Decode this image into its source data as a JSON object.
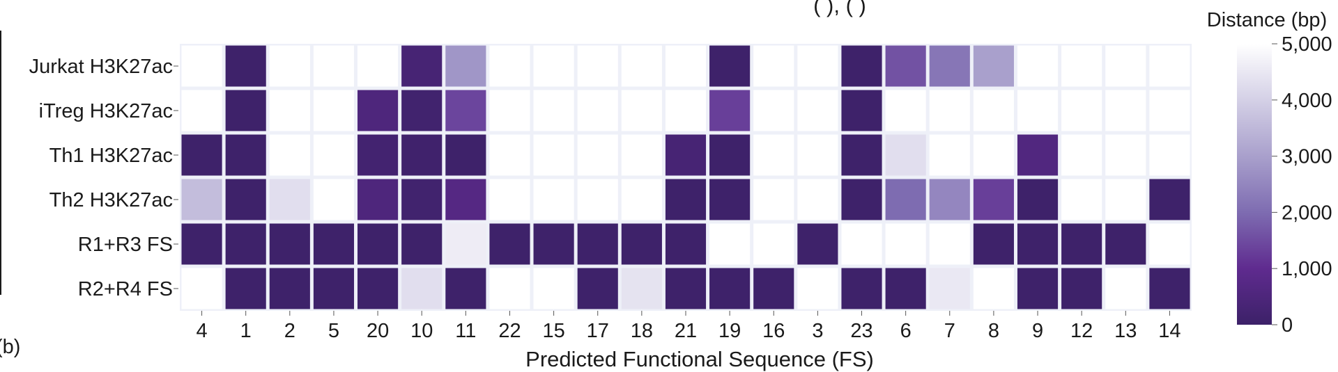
{
  "chart_data": {
    "type": "heatmap",
    "xlabel": "Predicted Functional Sequence (FS)",
    "x_categories": [
      "4",
      "1",
      "2",
      "5",
      "20",
      "10",
      "11",
      "22",
      "15",
      "17",
      "18",
      "21",
      "19",
      "16",
      "3",
      "23",
      "6",
      "7",
      "8",
      "9",
      "12",
      "13",
      "14"
    ],
    "y_categories": [
      "Jurkat H3K27ac",
      "iTreg H3K27ac",
      "Th1 H3K27ac",
      "Th2 H3K27ac",
      "R1+R3 FS",
      "R2+R4 FS"
    ],
    "values": [
      [
        5000,
        50,
        5000,
        5000,
        5000,
        300,
        2800,
        5000,
        5000,
        5000,
        5000,
        5000,
        50,
        5000,
        5000,
        50,
        1600,
        2200,
        3000,
        5000,
        5000,
        5000,
        5000
      ],
      [
        5000,
        50,
        5000,
        5000,
        500,
        150,
        1400,
        5000,
        5000,
        5000,
        5000,
        5000,
        1300,
        5000,
        5000,
        50,
        5000,
        5000,
        5000,
        5000,
        5000,
        5000,
        5000
      ],
      [
        50,
        50,
        5000,
        5000,
        200,
        100,
        50,
        5000,
        5000,
        5000,
        5000,
        300,
        50,
        5000,
        5000,
        50,
        4300,
        5000,
        5000,
        600,
        5000,
        5000,
        5000
      ],
      [
        3600,
        50,
        4300,
        5000,
        500,
        150,
        700,
        5000,
        5000,
        5000,
        5000,
        50,
        50,
        5000,
        5000,
        50,
        2000,
        2500,
        1300,
        50,
        5000,
        5000,
        50
      ],
      [
        50,
        50,
        50,
        50,
        50,
        50,
        4600,
        50,
        50,
        50,
        50,
        50,
        5000,
        5000,
        50,
        5000,
        5000,
        5000,
        50,
        50,
        50,
        50,
        5000
      ],
      [
        5000,
        50,
        50,
        50,
        50,
        4300,
        50,
        5000,
        5000,
        50,
        4400,
        50,
        50,
        50,
        5000,
        50,
        50,
        4500,
        5000,
        50,
        50,
        5000,
        50
      ]
    ],
    "colorbar": {
      "title": "Distance (bp)",
      "range": [
        0,
        5000
      ],
      "ticks": [
        0,
        1000,
        2000,
        3000,
        4000,
        5000
      ],
      "tick_labels": [
        "0",
        "1,000",
        "2,000",
        "3,000",
        "4,000",
        "5,000"
      ],
      "colormap": [
        "#3c2168",
        "#5f2b8f",
        "#7e6cb1",
        "#a9a0cc",
        "#d4d0e6",
        "#ffffff"
      ]
    },
    "grid_color": "#eef0f8",
    "edge_marks": {
      "left_fragment": "(b)",
      "top_fragment": "( ), ( )"
    }
  }
}
